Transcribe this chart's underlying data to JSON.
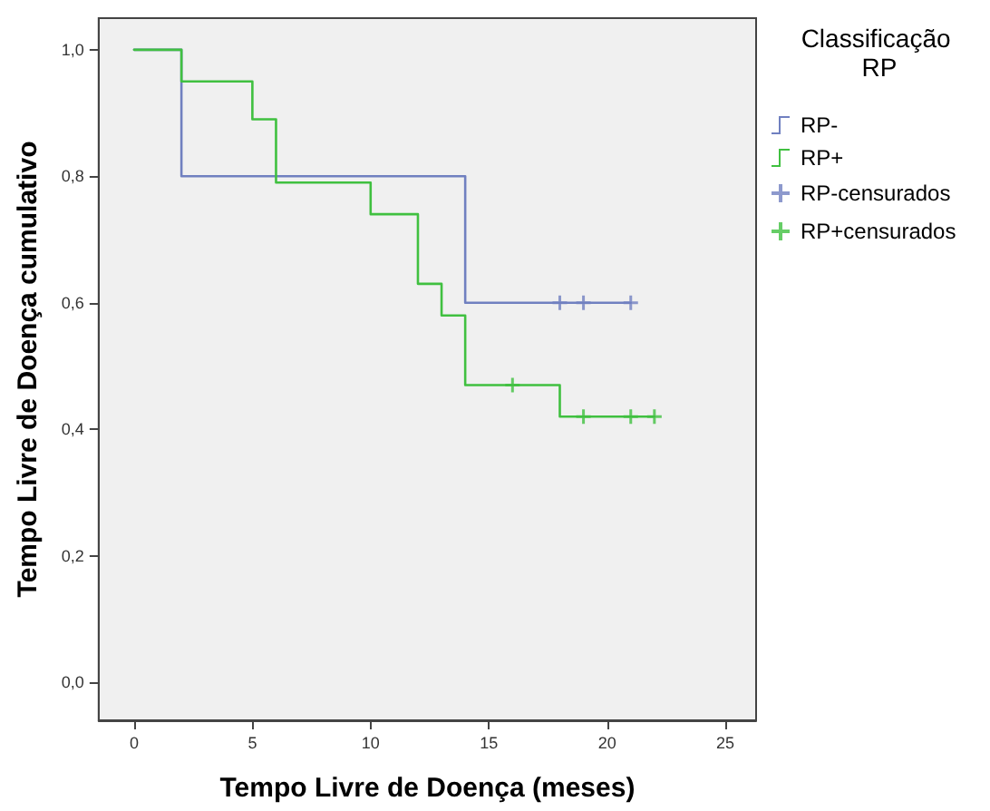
{
  "chart_data": {
    "type": "step",
    "xlabel": "Tempo Livre de Doença (meses)",
    "ylabel": "Tempo Livre de Doença cumulativo",
    "legend_title": "Classificação RP",
    "legend": "right",
    "grid": false,
    "xlim": [
      -1.5,
      26.3
    ],
    "xticks": [
      0,
      5,
      10,
      15,
      20,
      25
    ],
    "ylim": [
      -0.06,
      1.05
    ],
    "yticks": [
      {
        "value": 0,
        "label": "0,0"
      },
      {
        "value": 0.2,
        "label": "0,2"
      },
      {
        "value": 0.4,
        "label": "0,4"
      },
      {
        "value": 0.6,
        "label": "0,6"
      },
      {
        "value": 0.8,
        "label": "0,8"
      },
      {
        "value": 1,
        "label": "1,0"
      }
    ],
    "series": [
      {
        "name": "RP-",
        "color": "#7080c0",
        "marker": "none",
        "x": [
          0,
          2,
          14,
          21
        ],
        "values": [
          1,
          0.8,
          0.6,
          0.6
        ]
      },
      {
        "name": "RP+",
        "color": "#40c040",
        "marker": "none",
        "x": [
          0,
          2,
          5,
          6,
          10,
          12,
          13,
          14,
          18,
          22
        ],
        "values": [
          1,
          0.95,
          0.89,
          0.79,
          0.74,
          0.63,
          0.58,
          0.47,
          0.42,
          0.42
        ]
      },
      {
        "name": "RP-censurados",
        "type": "scatter",
        "color": "#7080c0",
        "marker": "cross",
        "x": [
          18,
          19,
          21
        ],
        "values": [
          0.6,
          0.6,
          0.6
        ]
      },
      {
        "name": "RP+censurados",
        "type": "scatter",
        "color": "#40c040",
        "marker": "cross",
        "x": [
          16,
          19,
          21,
          22
        ],
        "values": [
          0.47,
          0.42,
          0.42,
          0.42
        ]
      }
    ]
  }
}
